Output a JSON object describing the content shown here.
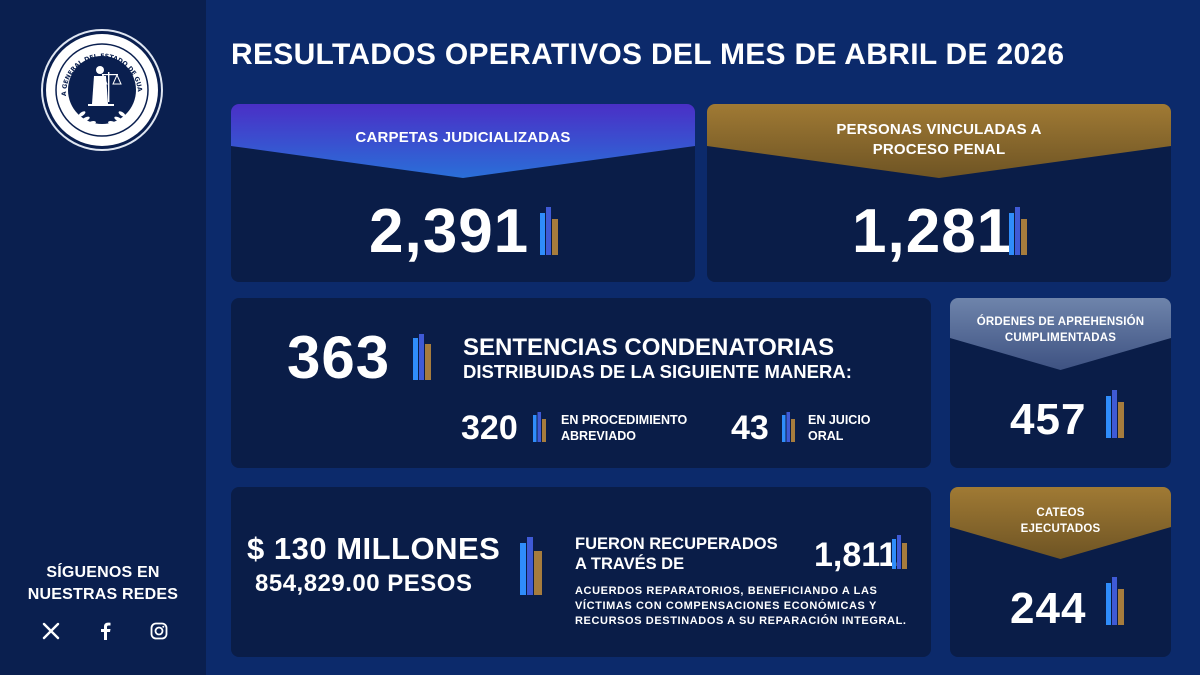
{
  "header": {
    "title": "RESULTADOS OPERATIVOS DEL MES DE ABRIL DE 2026"
  },
  "sidebar": {
    "logo_text": "FISCALÍA GENERAL DEL ESTADO DE GUANAJUATO",
    "social_title": "SÍGUENOS EN NUESTRAS REDES",
    "social_icons": [
      "x-icon",
      "facebook-icon",
      "instagram-icon"
    ]
  },
  "colors": {
    "background": "#0c2a6b",
    "card": "#0a1d48",
    "sidebar": "#0a1f4f",
    "banner_blue": "#3b2fb8",
    "banner_gold": "#8a6a2a",
    "banner_silver": "#5a6f96"
  },
  "cards": {
    "carpetas": {
      "label": "CARPETAS JUDICIALIZADAS",
      "value": "2,391"
    },
    "vinculadas": {
      "label_line1": "PERSONAS VINCULADAS A",
      "label_line2": "PROCESO PENAL",
      "value": "1,281"
    },
    "sentencias": {
      "value": "363",
      "title": "SENTENCIAS CONDENATORIAS",
      "subtitle": "DISTRIBUIDAS DE LA SIGUIENTE MANERA:",
      "abreviado": {
        "value": "320",
        "label_line1": "EN PROCEDIMIENTO",
        "label_line2": "ABREVIADO"
      },
      "oral": {
        "value": "43",
        "label_line1": "EN JUICIO",
        "label_line2": "ORAL"
      }
    },
    "ordenes": {
      "label_line1": "ÓRDENES DE APREHENSIÓN",
      "label_line2": "CUMPLIMENTADAS",
      "value": "457"
    },
    "recuperado": {
      "amount_line1": "$ 130 MILLONES",
      "amount_line2": "854,829.00 PESOS",
      "title_line1": "FUERON RECUPERADOS",
      "title_line2": "A TRAVÉS DE",
      "value": "1,811",
      "desc_line1": "ACUERDOS REPARATORIOS, BENEFICIANDO A LAS",
      "desc_line2": "VÍCTIMAS CON COMPENSACIONES ECONÓMICAS Y",
      "desc_line3": "RECURSOS DESTINADOS A SU REPARACIÓN INTEGRAL."
    },
    "cateos": {
      "label_line1": "CATEOS",
      "label_line2": "EJECUTADOS",
      "value": "244"
    }
  }
}
